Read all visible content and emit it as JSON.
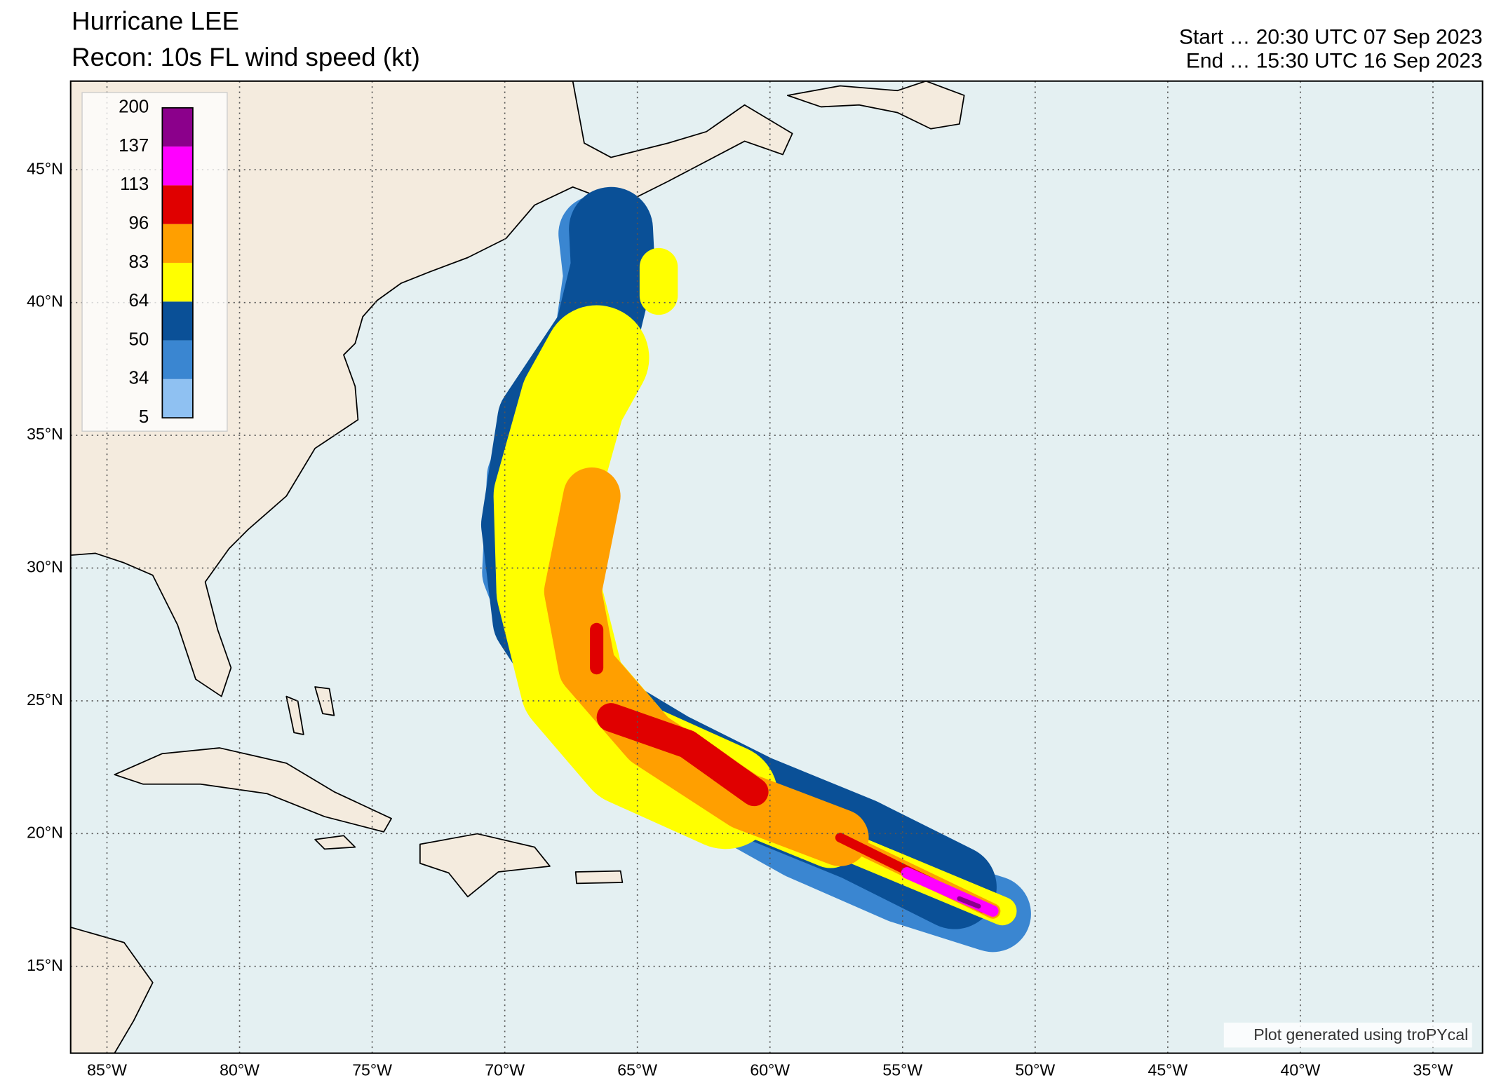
{
  "header": {
    "title": "Hurricane LEE",
    "subtitle": "Recon: 10s FL wind speed (kt)",
    "start": "Start … 20:30 UTC 07 Sep 2023",
    "end": "End … 15:30 UTC 16 Sep 2023"
  },
  "map": {
    "lonlim": [
      -86.37,
      -33.13
    ],
    "latlim": [
      11.73,
      48.34
    ],
    "lon_ticks": [
      {
        "value": -85,
        "label": "85°W"
      },
      {
        "value": -80,
        "label": "80°W"
      },
      {
        "value": -75,
        "label": "75°W"
      },
      {
        "value": -70,
        "label": "70°W"
      },
      {
        "value": -65,
        "label": "65°W"
      },
      {
        "value": -60,
        "label": "60°W"
      },
      {
        "value": -55,
        "label": "55°W"
      },
      {
        "value": -50,
        "label": "50°W"
      },
      {
        "value": -45,
        "label": "45°W"
      },
      {
        "value": -40,
        "label": "40°W"
      },
      {
        "value": -35,
        "label": "35°W"
      }
    ],
    "lat_ticks": [
      {
        "value": 15,
        "label": "15°N"
      },
      {
        "value": 20,
        "label": "20°N"
      },
      {
        "value": 25,
        "label": "25°N"
      },
      {
        "value": 30,
        "label": "30°N"
      },
      {
        "value": 35,
        "label": "35°N"
      },
      {
        "value": 40,
        "label": "40°N"
      },
      {
        "value": 45,
        "label": "45°N"
      }
    ]
  },
  "colorbar": {
    "levels": [
      5,
      34,
      50,
      64,
      83,
      96,
      113,
      137,
      200
    ],
    "colors": [
      "#8fc1f2",
      "#3a86d1",
      "#0a5097",
      "#ffff00",
      "#ff9f00",
      "#e00000",
      "#ff00ff",
      "#8b008b"
    ]
  },
  "credit": "Plot generated using troPYcal"
}
